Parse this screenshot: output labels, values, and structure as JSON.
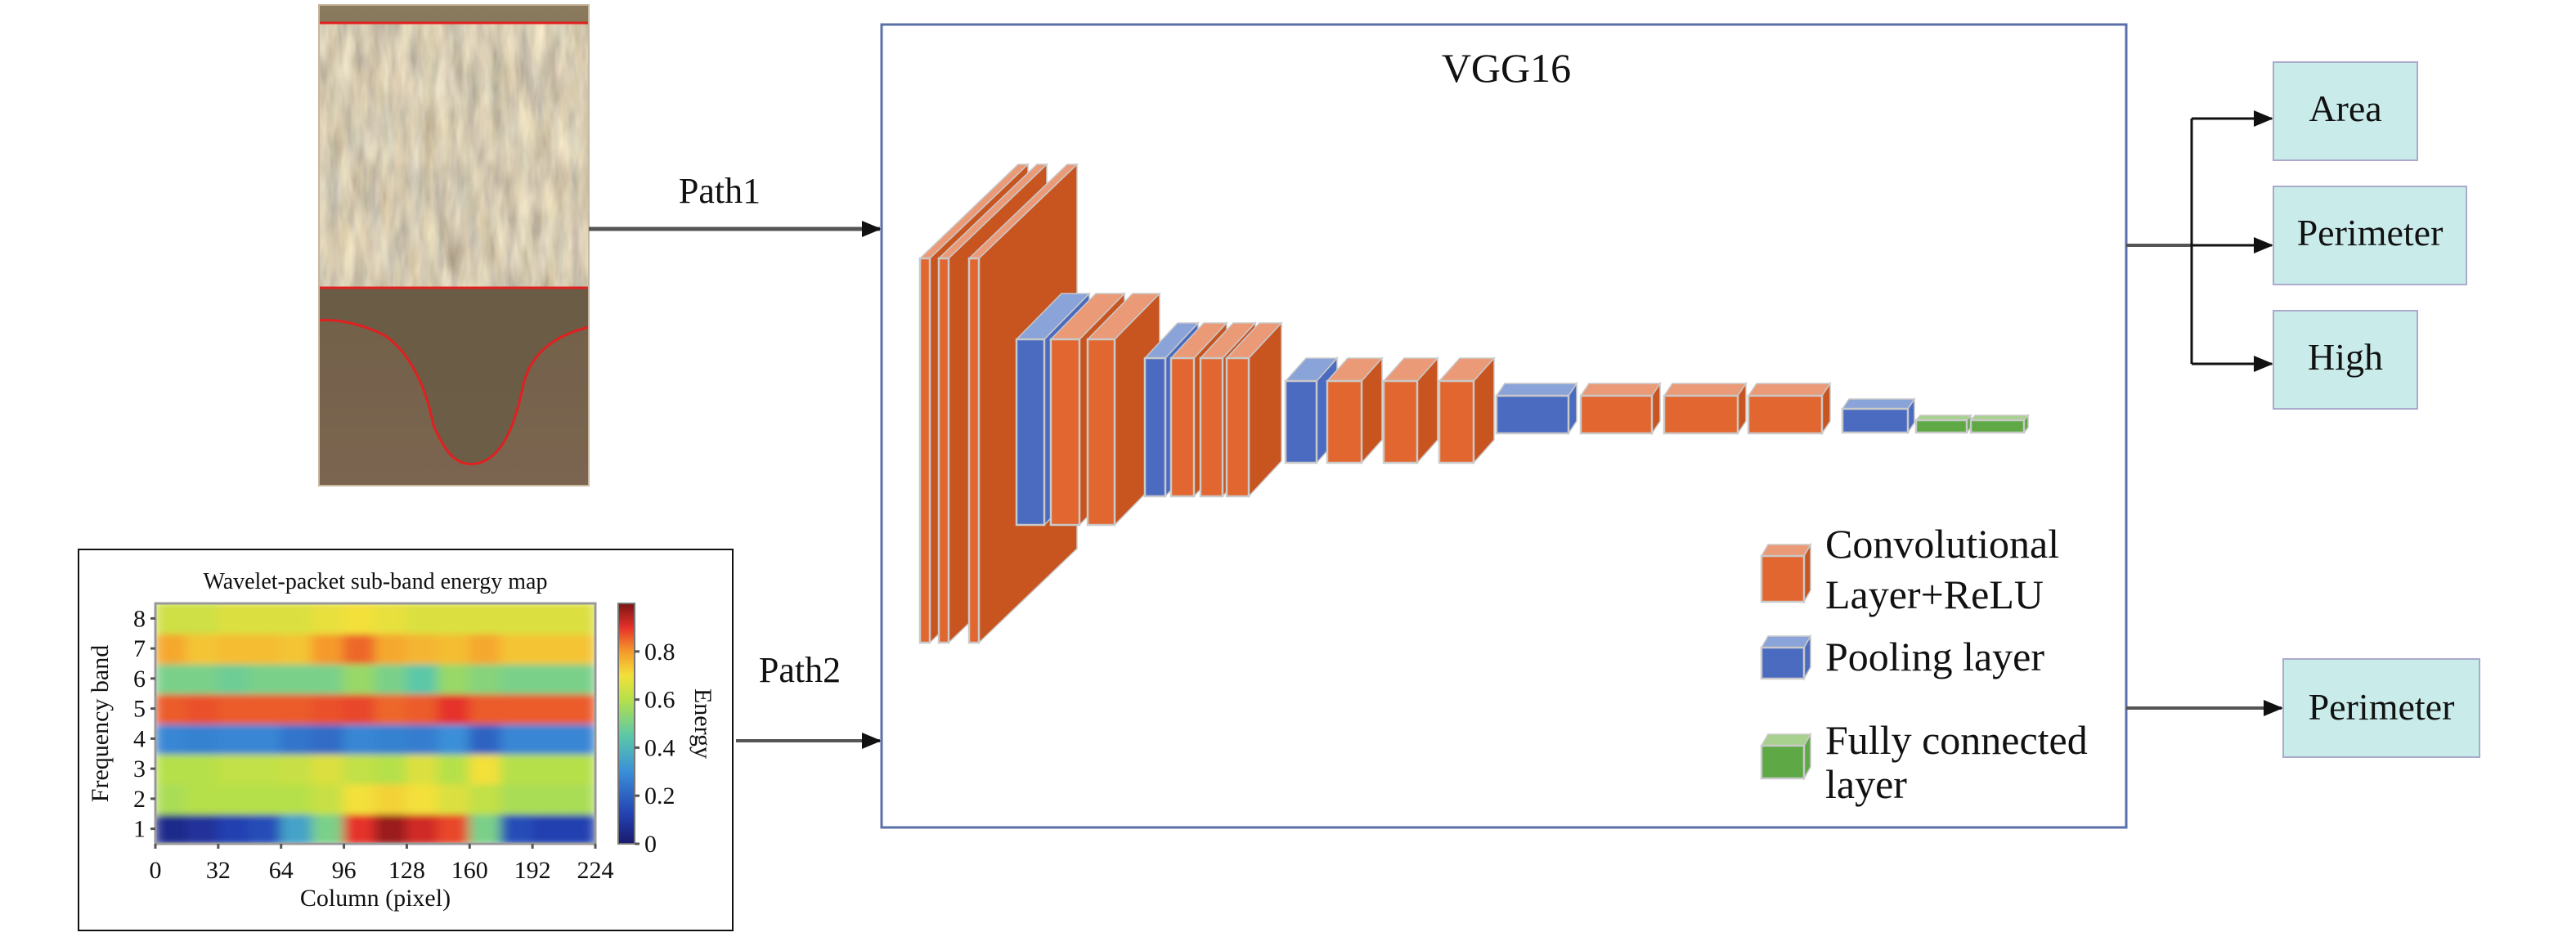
{
  "paths": {
    "path1": "Path1",
    "path2": "Path2"
  },
  "network": {
    "title": "VGG16",
    "layers": [
      "conv",
      "conv",
      "conv",
      "pool",
      "conv",
      "conv",
      "pool",
      "conv",
      "conv",
      "conv",
      "pool",
      "conv",
      "conv",
      "conv",
      "pool",
      "conv",
      "conv",
      "conv",
      "pool",
      "fc",
      "fc"
    ]
  },
  "legend": {
    "conv_line1": "Convolutional",
    "conv_line2": "Layer+ReLU",
    "pool": "Pooling layer",
    "fc_line1": "Fully connected",
    "fc_line2": "layer"
  },
  "outputs": {
    "path1": [
      "Area",
      "Perimeter",
      "High"
    ],
    "path2": [
      "Perimeter"
    ]
  },
  "colors": {
    "conv": "#e2662f",
    "conv_top": "#eb9a78",
    "conv_side": "#c8541f",
    "pool": "#4a6bbf",
    "pool_top": "#8aa3d8",
    "fc": "#5ea845",
    "fc_top": "#a8d08f",
    "output_box": "#c9ecea",
    "vgg_border": "#5b6fa8"
  },
  "chart_data": {
    "type": "heatmap",
    "title": "Wavelet-packet sub-band energy map",
    "xlabel": "Column (pixel)",
    "ylabel": "Frequency band",
    "colorbar_label": "Energy",
    "xlim": [
      0,
      224
    ],
    "ylim": [
      0.5,
      8.5
    ],
    "x_ticks": [
      "0",
      "32",
      "64",
      "96",
      "128",
      "160",
      "192",
      "224"
    ],
    "y_ticks": [
      "1",
      "2",
      "3",
      "4",
      "5",
      "6",
      "7",
      "8"
    ],
    "colorbar_ticks": [
      "0",
      "0.2",
      "0.4",
      "0.6",
      "0.8"
    ],
    "colorbar_range": [
      0,
      1
    ],
    "colormap": "jet",
    "column_bins": [
      0,
      16,
      32,
      48,
      64,
      80,
      96,
      112,
      128,
      144,
      160,
      176,
      192,
      208
    ],
    "values_by_band": [
      [
        0.05,
        0.08,
        0.12,
        0.15,
        0.35,
        0.5,
        0.9,
        0.97,
        0.92,
        0.88,
        0.5,
        0.15,
        0.12,
        0.12
      ],
      [
        0.58,
        0.6,
        0.6,
        0.6,
        0.6,
        0.63,
        0.7,
        0.72,
        0.7,
        0.66,
        0.62,
        0.58,
        0.58,
        0.58
      ],
      [
        0.6,
        0.6,
        0.62,
        0.62,
        0.63,
        0.66,
        0.62,
        0.6,
        0.66,
        0.6,
        0.7,
        0.6,
        0.6,
        0.6
      ],
      [
        0.28,
        0.27,
        0.28,
        0.28,
        0.24,
        0.22,
        0.28,
        0.27,
        0.26,
        0.3,
        0.2,
        0.28,
        0.28,
        0.28
      ],
      [
        0.86,
        0.87,
        0.86,
        0.86,
        0.86,
        0.87,
        0.88,
        0.85,
        0.86,
        0.9,
        0.86,
        0.86,
        0.86,
        0.86
      ],
      [
        0.5,
        0.5,
        0.48,
        0.5,
        0.5,
        0.5,
        0.55,
        0.5,
        0.45,
        0.55,
        0.52,
        0.5,
        0.5,
        0.5
      ],
      [
        0.78,
        0.74,
        0.75,
        0.75,
        0.74,
        0.8,
        0.85,
        0.78,
        0.76,
        0.75,
        0.78,
        0.74,
        0.74,
        0.74
      ],
      [
        0.64,
        0.64,
        0.66,
        0.66,
        0.66,
        0.68,
        0.7,
        0.68,
        0.66,
        0.66,
        0.66,
        0.66,
        0.66,
        0.66
      ]
    ]
  }
}
